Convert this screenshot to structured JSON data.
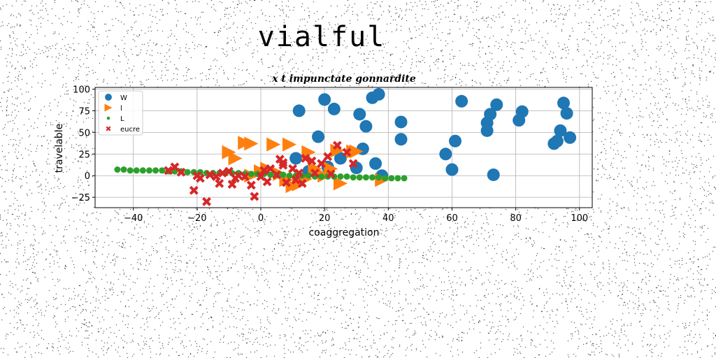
{
  "page": {
    "title": "vialful"
  },
  "chart_data": {
    "type": "scatter",
    "title": "x t impunctate gonnardite",
    "xlabel": "coaggregation",
    "ylabel": "travelable",
    "xlim": [
      -52,
      104
    ],
    "ylim": [
      -37,
      102
    ],
    "xticks": [
      -40,
      -20,
      0,
      20,
      40,
      60,
      80,
      100
    ],
    "yticks": [
      -25,
      0,
      25,
      50,
      75,
      100
    ],
    "xtick_labels": [
      "−40",
      "−20",
      "0",
      "20",
      "40",
      "60",
      "80",
      "100"
    ],
    "ytick_labels": [
      "−25",
      "0",
      "25",
      "50",
      "75",
      "100"
    ],
    "grid": true,
    "legend_position": "top-left",
    "series": [
      {
        "name": "W",
        "marker": "circle",
        "color": "#1f77b4",
        "x": [
          11,
          12,
          18,
          20,
          21,
          23,
          31,
          32,
          33,
          35,
          36,
          37,
          38,
          44,
          44,
          58,
          60,
          61,
          63,
          71,
          71,
          72,
          73,
          74,
          81,
          82,
          92,
          93,
          94,
          95,
          96,
          97,
          30,
          25,
          15
        ],
        "y": [
          20,
          75,
          45,
          88,
          10,
          77,
          71,
          31,
          57,
          90,
          14,
          94,
          0,
          62,
          42,
          25,
          7,
          40,
          86,
          52,
          61,
          71,
          1,
          82,
          64,
          74,
          37,
          40,
          52,
          84,
          72,
          44,
          9,
          20,
          5
        ]
      },
      {
        "name": "l",
        "marker": "triangle-right",
        "color": "#ff7f0e",
        "x": [
          -10,
          -8,
          -5,
          -3,
          4,
          9,
          15,
          24,
          29,
          10,
          12,
          6,
          2,
          8,
          22,
          25,
          38,
          0,
          -3,
          14,
          17,
          30,
          20
        ],
        "y": [
          27,
          20,
          38,
          37,
          36,
          36,
          27,
          29,
          28,
          -12,
          -10,
          2,
          8,
          -5,
          8,
          -9,
          -5,
          5,
          0,
          -4,
          8,
          28,
          0
        ],
        "sizes": [
          1,
          1,
          1,
          1,
          1,
          1,
          1,
          1,
          1,
          1,
          1,
          1,
          1,
          1,
          1,
          1,
          1,
          1,
          1,
          1,
          1,
          1,
          1
        ]
      },
      {
        "name": "L",
        "marker": "dot",
        "color": "#2ca02c",
        "x": [
          -45,
          -43,
          -41,
          -39,
          -37,
          -35,
          -33,
          -31,
          -29,
          -27,
          -25,
          -23,
          -21,
          -19,
          -17,
          -15,
          -13,
          -11,
          -9,
          -7,
          -5,
          -3,
          -1,
          1,
          3,
          5,
          7,
          9,
          11,
          13,
          15,
          17,
          19,
          21,
          23,
          25,
          27,
          29,
          31,
          33,
          35,
          37,
          39,
          41,
          43,
          45
        ],
        "y": [
          7,
          7,
          6,
          6,
          6,
          6,
          6,
          6,
          5,
          5,
          5,
          4,
          4,
          4,
          3,
          3,
          3,
          3,
          3,
          3,
          2,
          2,
          2,
          2,
          1,
          1,
          1,
          0,
          0,
          0,
          0,
          -1,
          -1,
          -1,
          -1,
          -1,
          -1,
          -2,
          -2,
          -2,
          -2,
          -2,
          -3,
          -3,
          -3,
          -3
        ]
      },
      {
        "name": "eucre",
        "marker": "x",
        "color": "#d62728",
        "x": [
          -27,
          -29,
          -25,
          -21,
          -19,
          -17,
          -14,
          -13,
          -10,
          -9,
          -7,
          -5,
          -3,
          -2,
          0,
          1,
          3,
          5,
          6,
          7,
          8,
          10,
          11,
          12,
          13,
          14,
          16,
          17,
          19,
          21,
          22,
          24,
          27,
          29,
          -20,
          -16,
          -12,
          -8,
          2,
          7
        ],
        "y": [
          10,
          6,
          4,
          -17,
          -3,
          -30,
          -1,
          -9,
          5,
          -10,
          0,
          -1,
          -11,
          -24,
          -1,
          6,
          8,
          1,
          19,
          15,
          -8,
          8,
          -5,
          3,
          -9,
          20,
          17,
          3,
          14,
          22,
          2,
          35,
          27,
          14,
          0,
          1,
          3,
          -3,
          -7,
          12
        ]
      }
    ]
  }
}
